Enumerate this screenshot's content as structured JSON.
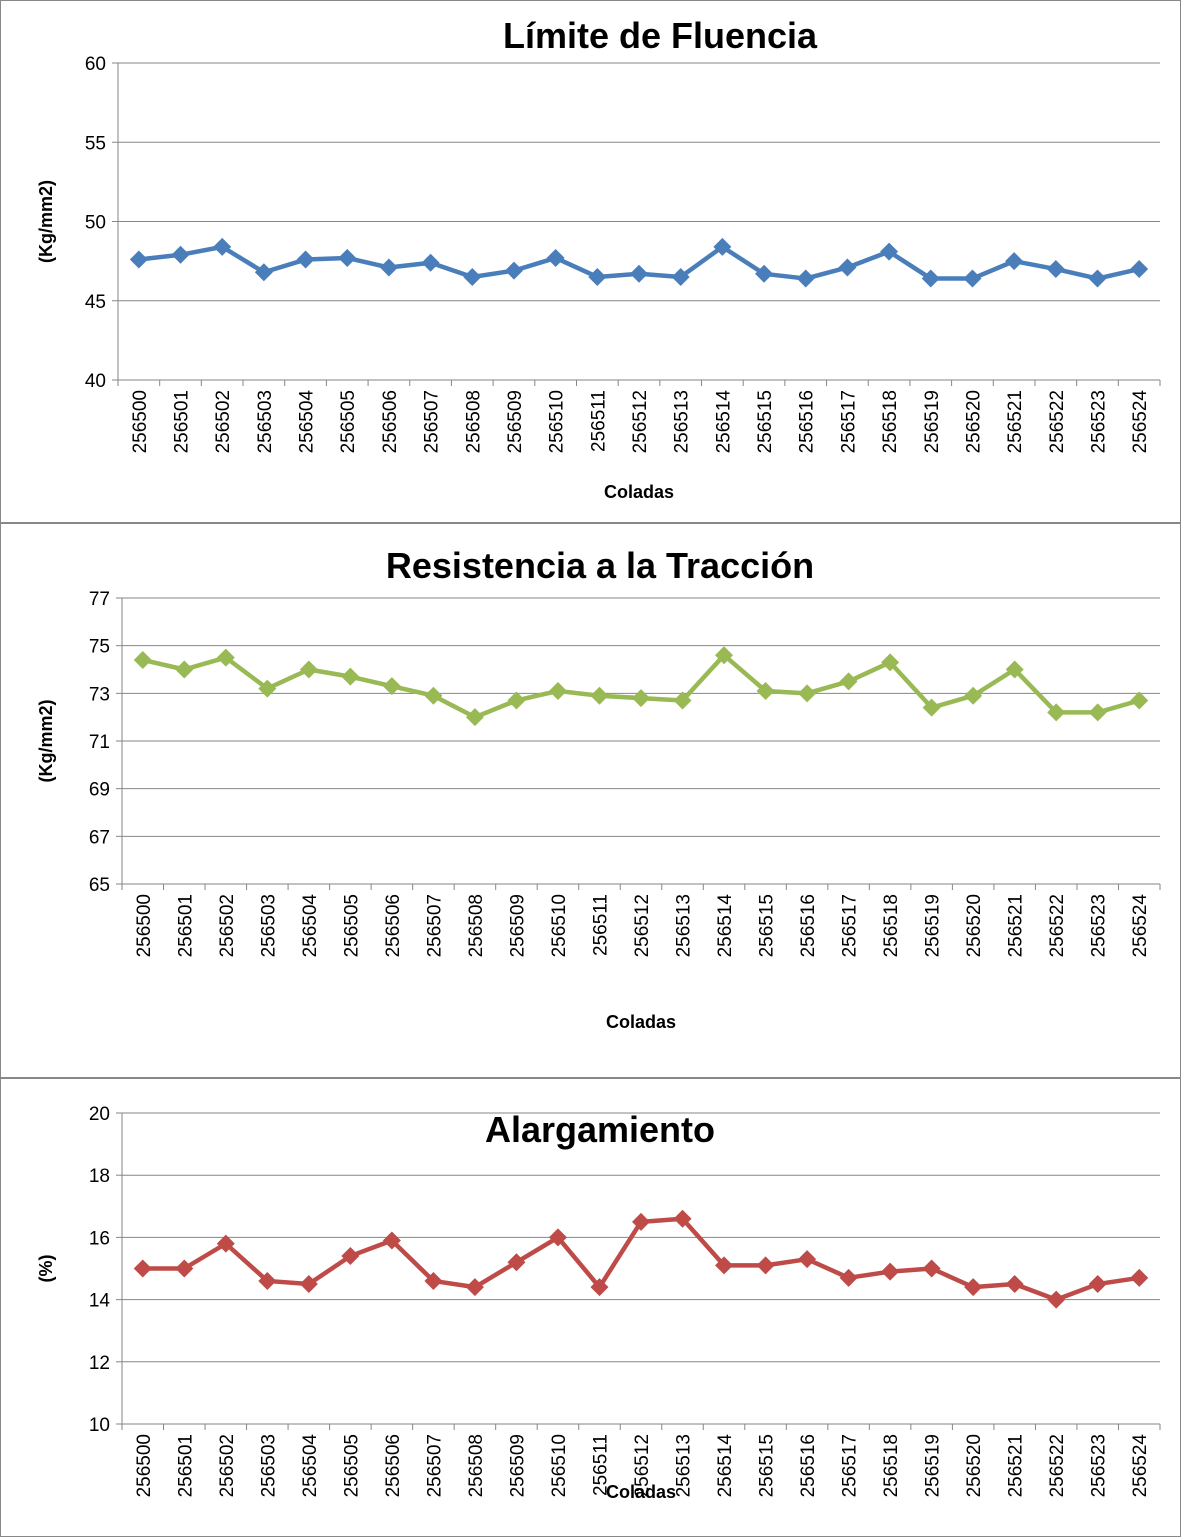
{
  "chart_data": [
    {
      "type": "line",
      "title": "Límite de Fluencia",
      "y_label": "(Kg/mm2)",
      "x_label": "Coladas",
      "color": "#4a7ebb",
      "grid": true,
      "categories": [
        "256500",
        "256501",
        "256502",
        "256503",
        "256504",
        "256505",
        "256506",
        "256507",
        "256508",
        "256509",
        "256510",
        "256511",
        "256512",
        "256513",
        "256514",
        "256515",
        "256516",
        "256517",
        "256518",
        "256519",
        "256520",
        "256521",
        "256522",
        "256523",
        "256524"
      ],
      "values": [
        47.6,
        47.9,
        48.4,
        46.8,
        47.6,
        47.7,
        47.1,
        47.4,
        46.5,
        46.9,
        47.7,
        46.5,
        46.7,
        46.5,
        48.4,
        46.7,
        46.4,
        47.1,
        48.1,
        46.4,
        46.4,
        47.5,
        47.0,
        46.4,
        47.0
      ],
      "ylim": [
        40,
        60
      ],
      "yticks": [
        40,
        45,
        50,
        55,
        60
      ]
    },
    {
      "type": "line",
      "title": "Resistencia  a la Tracción",
      "y_label": "(Kg/mm2)",
      "x_label": "Coladas",
      "color": "#98b954",
      "grid": true,
      "categories": [
        "256500",
        "256501",
        "256502",
        "256503",
        "256504",
        "256505",
        "256506",
        "256507",
        "256508",
        "256509",
        "256510",
        "256511",
        "256512",
        "256513",
        "256514",
        "256515",
        "256516",
        "256517",
        "256518",
        "256519",
        "256520",
        "256521",
        "256522",
        "256523",
        "256524"
      ],
      "values": [
        74.4,
        74.0,
        74.5,
        73.2,
        74.0,
        73.7,
        73.3,
        72.9,
        72.0,
        72.7,
        73.1,
        72.9,
        72.8,
        72.7,
        74.6,
        73.1,
        73.0,
        73.5,
        74.3,
        72.4,
        72.9,
        74.0,
        72.2,
        72.2,
        72.7
      ],
      "ylim": [
        65,
        77
      ],
      "yticks": [
        65,
        67,
        69,
        71,
        73,
        75,
        77
      ]
    },
    {
      "type": "line",
      "title": "Alargamiento",
      "y_label": "(%)",
      "x_label": "Coladas",
      "color": "#be4b48",
      "grid": true,
      "categories": [
        "256500",
        "256501",
        "256502",
        "256503",
        "256504",
        "256505",
        "256506",
        "256507",
        "256508",
        "256509",
        "256510",
        "256511",
        "256512",
        "256513",
        "256514",
        "256515",
        "256516",
        "256517",
        "256518",
        "256519",
        "256520",
        "256521",
        "256522",
        "256523",
        "256524"
      ],
      "values": [
        15.0,
        15.0,
        15.8,
        14.6,
        14.5,
        15.4,
        15.9,
        14.6,
        14.4,
        15.2,
        16.0,
        14.4,
        16.5,
        16.6,
        15.1,
        15.1,
        15.3,
        14.7,
        14.9,
        15.0,
        14.4,
        14.5,
        14.0,
        14.5,
        14.7
      ],
      "ylim": [
        10,
        20
      ],
      "yticks": [
        10,
        12,
        14,
        16,
        18,
        20
      ]
    }
  ]
}
